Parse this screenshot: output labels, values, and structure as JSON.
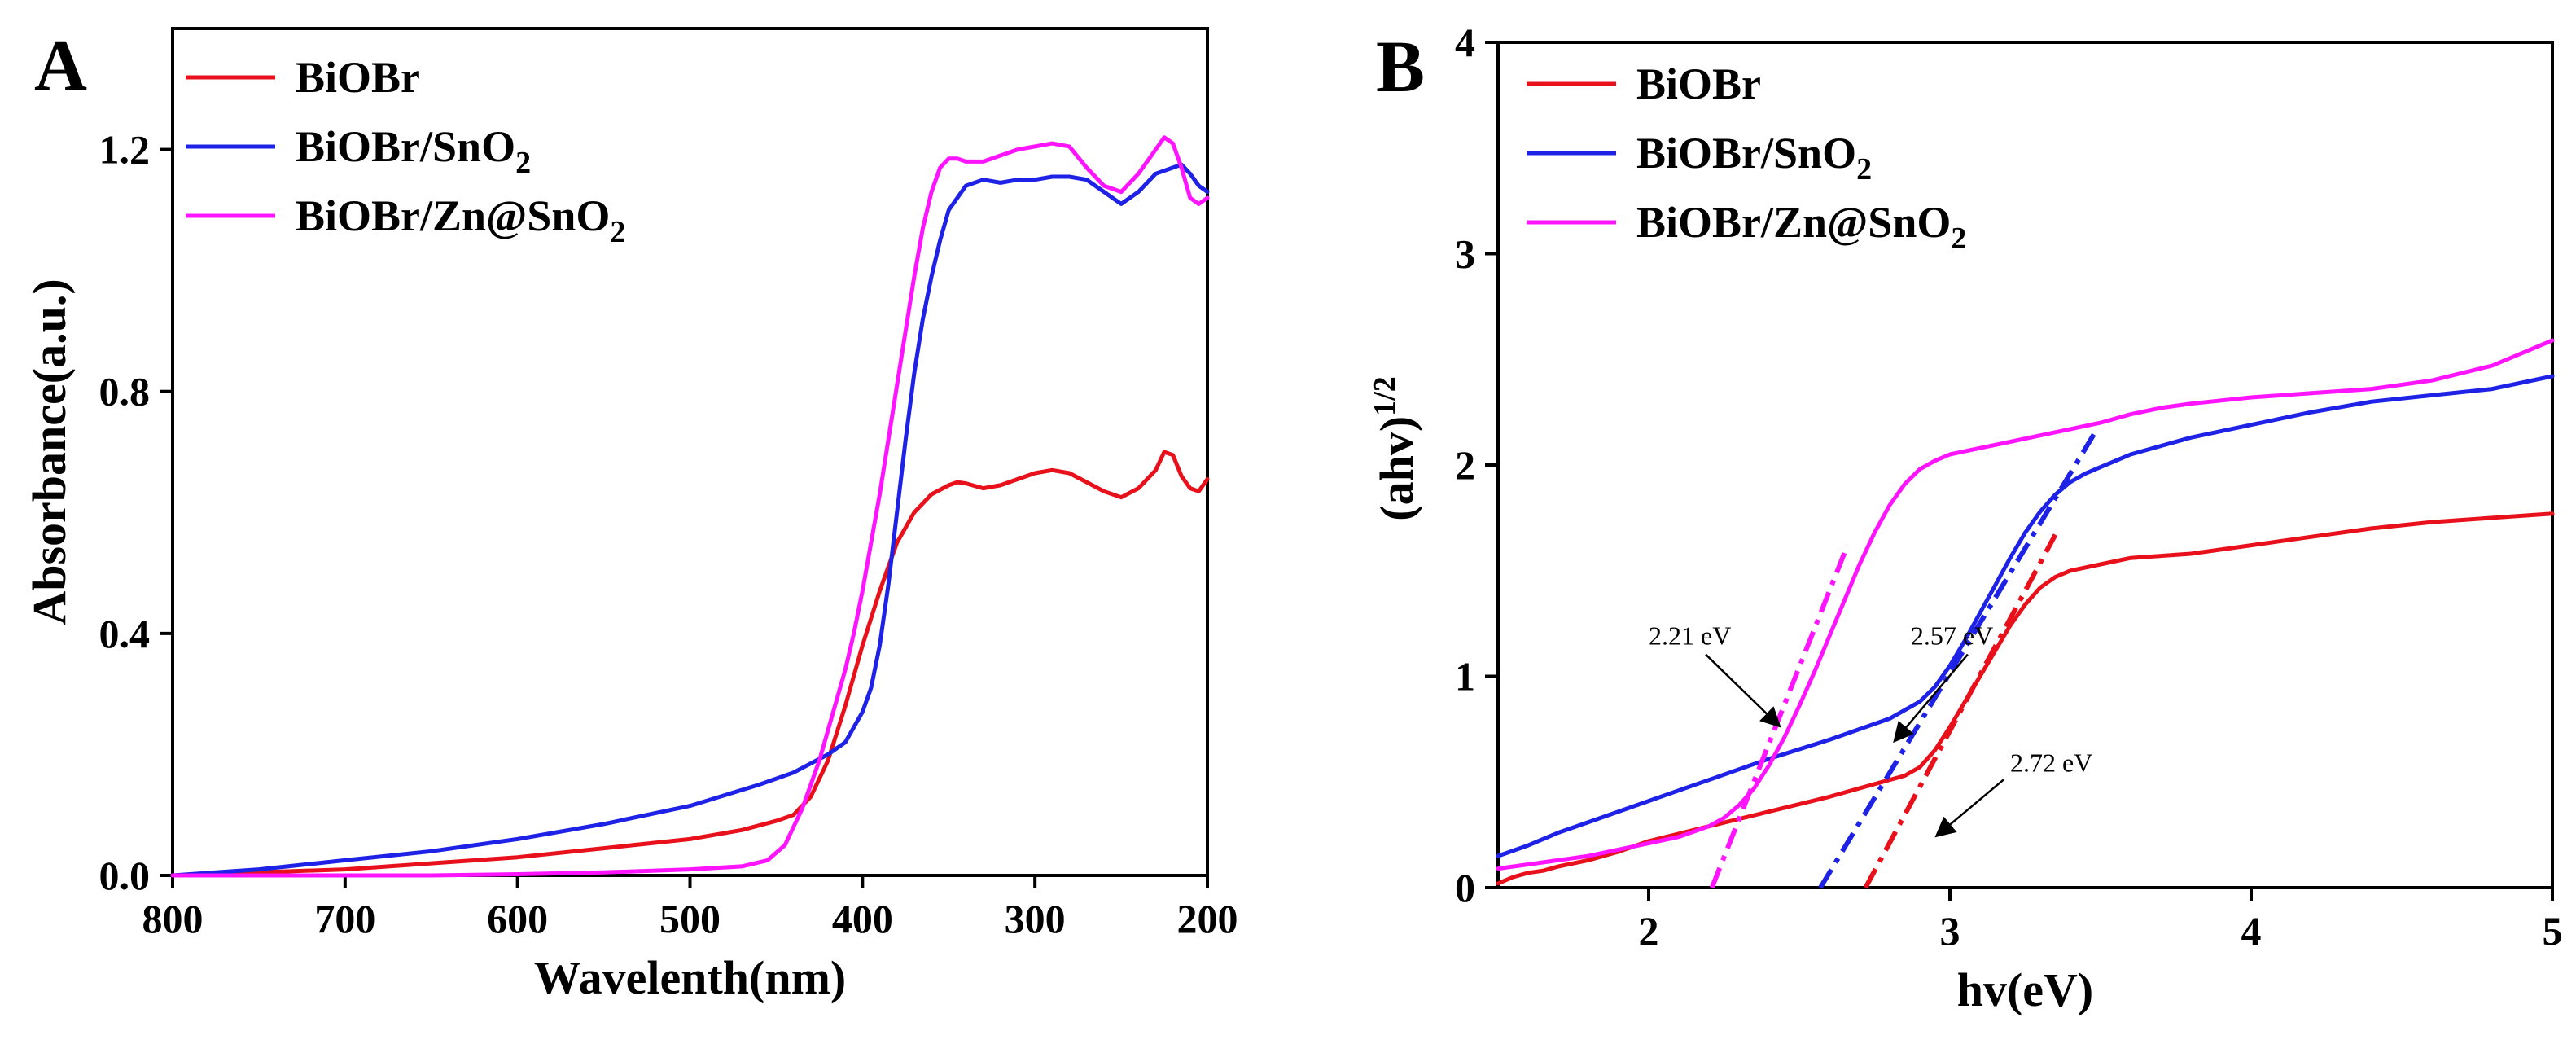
{
  "colors": {
    "BiOBr": "#e8101a",
    "BiOBr/SnO2": "#1e22e6",
    "BiOBr/Zn@SnO2": "#ff14ff",
    "axis": "#000000"
  },
  "chart_data": [
    {
      "panel": "A",
      "type": "line",
      "title": "",
      "xlabel": "Wavelenth(nm)",
      "ylabel": "Absorbance(a.u.)",
      "xlim": [
        800,
        200
      ],
      "ylim": [
        0.0,
        1.4
      ],
      "xticks": [
        800,
        700,
        600,
        500,
        400,
        300,
        200
      ],
      "xtick_labels": [
        "800",
        "700",
        "600",
        "500",
        "400",
        "300",
        "200"
      ],
      "yticks": [
        0.0,
        0.4,
        0.8,
        1.2
      ],
      "ytick_labels": [
        "0.0",
        "0.4",
        "0.8",
        "1.2"
      ],
      "legend_position": "top-left",
      "series": [
        {
          "name": "BiOBr",
          "legend_base": "BiOBr",
          "legend_sub": "",
          "x": [
            800,
            750,
            700,
            650,
            600,
            550,
            500,
            470,
            450,
            440,
            430,
            420,
            410,
            400,
            390,
            380,
            370,
            360,
            350,
            345,
            340,
            330,
            320,
            310,
            300,
            290,
            280,
            270,
            260,
            250,
            240,
            230,
            225,
            220,
            215,
            210,
            205,
            200
          ],
          "y": [
            0.0,
            0.005,
            0.01,
            0.02,
            0.03,
            0.045,
            0.06,
            0.075,
            0.09,
            0.1,
            0.13,
            0.19,
            0.28,
            0.38,
            0.47,
            0.55,
            0.6,
            0.63,
            0.645,
            0.65,
            0.648,
            0.64,
            0.645,
            0.655,
            0.665,
            0.67,
            0.665,
            0.65,
            0.635,
            0.625,
            0.64,
            0.67,
            0.7,
            0.695,
            0.66,
            0.64,
            0.635,
            0.655
          ]
        },
        {
          "name": "BiOBr/SnO2",
          "legend_base": "BiOBr/SnO",
          "legend_sub": "2",
          "x": [
            800,
            750,
            700,
            650,
            600,
            550,
            500,
            460,
            440,
            420,
            410,
            400,
            395,
            390,
            385,
            380,
            375,
            370,
            365,
            360,
            355,
            350,
            340,
            330,
            320,
            310,
            300,
            290,
            280,
            270,
            260,
            250,
            240,
            230,
            220,
            215,
            210,
            205,
            200
          ],
          "y": [
            0.0,
            0.01,
            0.025,
            0.04,
            0.06,
            0.085,
            0.115,
            0.15,
            0.17,
            0.2,
            0.22,
            0.27,
            0.31,
            0.38,
            0.48,
            0.6,
            0.72,
            0.83,
            0.92,
            0.99,
            1.05,
            1.1,
            1.14,
            1.15,
            1.145,
            1.15,
            1.15,
            1.155,
            1.155,
            1.15,
            1.13,
            1.11,
            1.13,
            1.16,
            1.17,
            1.175,
            1.16,
            1.14,
            1.13
          ]
        },
        {
          "name": "BiOBr/Zn@SnO2",
          "legend_base": "BiOBr/Zn@SnO",
          "legend_sub": "2",
          "x": [
            800,
            750,
            700,
            650,
            600,
            550,
            500,
            470,
            455,
            445,
            440,
            435,
            430,
            425,
            420,
            415,
            410,
            405,
            400,
            395,
            390,
            385,
            380,
            375,
            370,
            365,
            360,
            355,
            350,
            345,
            340,
            330,
            320,
            310,
            300,
            290,
            280,
            270,
            260,
            250,
            240,
            230,
            225,
            220,
            215,
            210,
            205,
            200
          ],
          "y": [
            0.0,
            0.0,
            0.0,
            0.0,
            0.002,
            0.005,
            0.01,
            0.015,
            0.025,
            0.05,
            0.08,
            0.11,
            0.15,
            0.19,
            0.24,
            0.29,
            0.34,
            0.4,
            0.47,
            0.55,
            0.63,
            0.72,
            0.81,
            0.9,
            0.99,
            1.07,
            1.13,
            1.17,
            1.185,
            1.185,
            1.18,
            1.18,
            1.19,
            1.2,
            1.205,
            1.21,
            1.205,
            1.17,
            1.14,
            1.13,
            1.16,
            1.2,
            1.22,
            1.21,
            1.17,
            1.12,
            1.11,
            1.12
          ]
        }
      ]
    },
    {
      "panel": "B",
      "type": "line",
      "title": "",
      "xlabel": "hv(eV)",
      "ylabel_base": "(ahv)",
      "ylabel_sup": "1/2",
      "xlim": [
        1.5,
        5.0
      ],
      "ylim": [
        0,
        4
      ],
      "xticks": [
        2,
        3,
        4,
        5
      ],
      "xtick_labels": [
        "2",
        "3",
        "4",
        "5"
      ],
      "yticks": [
        0,
        1,
        2,
        3,
        4
      ],
      "ytick_labels": [
        "0",
        "1",
        "2",
        "3",
        "4"
      ],
      "legend_position": "top-left",
      "series": [
        {
          "name": "BiOBr",
          "legend_base": "BiOBr",
          "legend_sub": "",
          "x": [
            1.5,
            1.55,
            1.6,
            1.65,
            1.7,
            1.8,
            1.9,
            2.0,
            2.2,
            2.4,
            2.6,
            2.75,
            2.85,
            2.9,
            2.95,
            3.0,
            3.05,
            3.1,
            3.15,
            3.2,
            3.25,
            3.3,
            3.35,
            3.4,
            3.5,
            3.6,
            3.8,
            4.0,
            4.2,
            4.4,
            4.6,
            4.8,
            5.0
          ],
          "y": [
            0.02,
            0.05,
            0.07,
            0.08,
            0.1,
            0.13,
            0.17,
            0.22,
            0.29,
            0.36,
            0.43,
            0.49,
            0.53,
            0.57,
            0.65,
            0.76,
            0.88,
            1.0,
            1.12,
            1.24,
            1.34,
            1.42,
            1.47,
            1.5,
            1.53,
            1.56,
            1.58,
            1.62,
            1.66,
            1.7,
            1.73,
            1.75,
            1.77
          ]
        },
        {
          "name": "BiOBr/SnO2",
          "legend_base": "BiOBr/SnO",
          "legend_sub": "2",
          "x": [
            1.5,
            1.6,
            1.7,
            1.8,
            1.9,
            2.0,
            2.2,
            2.4,
            2.6,
            2.7,
            2.8,
            2.9,
            2.95,
            3.0,
            3.05,
            3.1,
            3.15,
            3.2,
            3.25,
            3.3,
            3.35,
            3.4,
            3.45,
            3.5,
            3.55,
            3.6,
            3.7,
            3.8,
            4.0,
            4.2,
            4.4,
            4.6,
            4.8,
            5.0
          ],
          "y": [
            0.15,
            0.2,
            0.26,
            0.31,
            0.36,
            0.41,
            0.51,
            0.61,
            0.7,
            0.75,
            0.8,
            0.88,
            0.95,
            1.05,
            1.17,
            1.3,
            1.43,
            1.56,
            1.68,
            1.78,
            1.86,
            1.92,
            1.96,
            1.99,
            2.02,
            2.05,
            2.09,
            2.13,
            2.19,
            2.25,
            2.3,
            2.33,
            2.36,
            2.42
          ]
        },
        {
          "name": "BiOBr/Zn@SnO2",
          "legend_base": "BiOBr/Zn@SnO",
          "legend_sub": "2",
          "x": [
            1.5,
            1.6,
            1.7,
            1.8,
            1.9,
            2.0,
            2.1,
            2.2,
            2.25,
            2.3,
            2.35,
            2.4,
            2.45,
            2.5,
            2.55,
            2.6,
            2.65,
            2.7,
            2.75,
            2.8,
            2.85,
            2.9,
            2.95,
            3.0,
            3.1,
            3.2,
            3.3,
            3.4,
            3.5,
            3.6,
            3.7,
            3.8,
            4.0,
            4.2,
            4.4,
            4.6,
            4.8,
            5.0
          ],
          "y": [
            0.09,
            0.11,
            0.13,
            0.15,
            0.18,
            0.21,
            0.24,
            0.29,
            0.33,
            0.39,
            0.47,
            0.58,
            0.71,
            0.86,
            1.02,
            1.19,
            1.36,
            1.53,
            1.68,
            1.81,
            1.91,
            1.98,
            2.02,
            2.05,
            2.08,
            2.11,
            2.14,
            2.17,
            2.2,
            2.24,
            2.27,
            2.29,
            2.32,
            2.34,
            2.36,
            2.4,
            2.47,
            2.59
          ]
        }
      ],
      "fit_lines": [
        {
          "series": "BiOBr",
          "x": [
            2.72,
            3.35
          ],
          "y": [
            0.0,
            1.67
          ]
        },
        {
          "series": "BiOBr/SnO2",
          "x": [
            2.57,
            3.48
          ],
          "y": [
            0.0,
            2.15
          ]
        },
        {
          "series": "BiOBr/Zn@SnO2",
          "x": [
            2.21,
            2.66
          ],
          "y": [
            0.0,
            1.62
          ]
        }
      ],
      "annotations": [
        {
          "text": "2.21 eV",
          "x": 2.0,
          "y": 1.15,
          "arrow_to": [
            2.43,
            0.77
          ]
        },
        {
          "text": "2.57 eV",
          "x": 2.87,
          "y": 1.15,
          "arrow_to": [
            2.82,
            0.7
          ]
        },
        {
          "text": "2.72 eV",
          "x": 3.2,
          "y": 0.55,
          "arrow_to": [
            2.96,
            0.25
          ]
        }
      ]
    }
  ]
}
